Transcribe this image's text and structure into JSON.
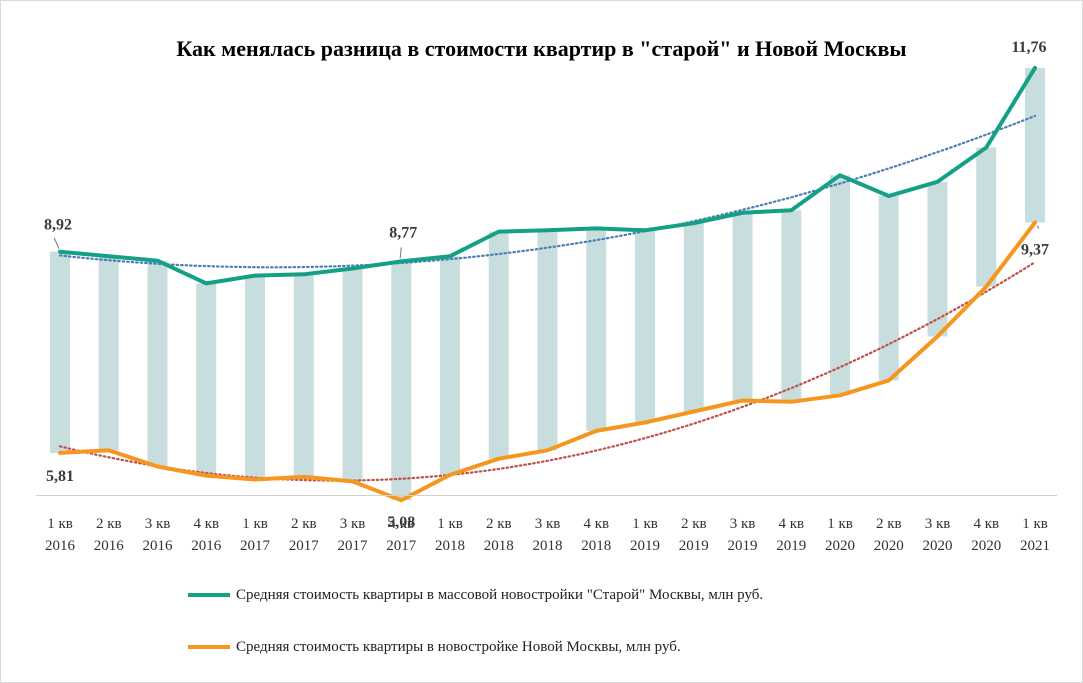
{
  "chart_data": {
    "type": "line",
    "title": "Как менялась разница в стоимости  квартир в \"старой\"  и Новой  Москвы",
    "xlabel": "",
    "ylabel": "",
    "ylim": [
      4.5,
      12.2
    ],
    "grid": false,
    "legend_position": "bottom",
    "categories": [
      [
        "1 кв",
        "2016"
      ],
      [
        "2 кв",
        "2016"
      ],
      [
        "3 кв",
        "2016"
      ],
      [
        "4 кв",
        "2016"
      ],
      [
        "1 кв",
        "2017"
      ],
      [
        "2 кв",
        "2017"
      ],
      [
        "3 кв",
        "2017"
      ],
      [
        "4 кв",
        "2017"
      ],
      [
        "1 кв",
        "2018"
      ],
      [
        "2 кв",
        "2018"
      ],
      [
        "3 кв",
        "2018"
      ],
      [
        "4 кв",
        "2018"
      ],
      [
        "1 кв",
        "2019"
      ],
      [
        "2 кв",
        "2019"
      ],
      [
        "3 кв",
        "2019"
      ],
      [
        "4 кв",
        "2019"
      ],
      [
        "1 кв",
        "2020"
      ],
      [
        "2 кв",
        "2020"
      ],
      [
        "3 кв",
        "2020"
      ],
      [
        "4 кв",
        "2020"
      ],
      [
        "1 кв",
        "2021"
      ]
    ],
    "series": [
      {
        "name": "Средняя стоимость квартиры в массовой новостройки \"Старой\" Москвы, млн руб.",
        "color": "#13a085",
        "values": [
          8.92,
          8.85,
          8.78,
          8.43,
          8.55,
          8.57,
          8.66,
          8.77,
          8.85,
          9.23,
          9.25,
          9.28,
          9.25,
          9.36,
          9.52,
          9.56,
          10.1,
          9.78,
          10.0,
          10.53,
          11.76
        ]
      },
      {
        "name": "Средняя стоимость квартиры в новостройке Новой Москвы, млн руб.",
        "color": "#f7961e",
        "values": [
          5.81,
          5.85,
          5.6,
          5.46,
          5.4,
          5.44,
          5.37,
          5.08,
          5.47,
          5.72,
          5.85,
          6.15,
          6.28,
          6.45,
          6.62,
          6.6,
          6.7,
          6.93,
          7.61,
          8.38,
          9.37
        ]
      }
    ],
    "range_bars_color": "#c8dede",
    "trendlines": [
      {
        "of_series": 0,
        "style": "dotted",
        "color": "#4a7fb5"
      },
      {
        "of_series": 1,
        "style": "dotted",
        "color": "#c0504d"
      }
    ],
    "data_labels": [
      {
        "series": 0,
        "index": 0,
        "text": "8,92"
      },
      {
        "series": 0,
        "index": 7,
        "text": "8,77"
      },
      {
        "series": 0,
        "index": 20,
        "text": "11,76"
      },
      {
        "series": 1,
        "index": 0,
        "text": "5,81"
      },
      {
        "series": 1,
        "index": 7,
        "text": "5,08"
      },
      {
        "series": 1,
        "index": 20,
        "text": "9,37"
      }
    ]
  },
  "legend": {
    "items": [
      {
        "label": "Средняя стоимость квартиры в массовой новостройки \"Старой\" Москвы, млн руб.",
        "color": "#13a085"
      },
      {
        "label": "Средняя стоимость квартиры в новостройке Новой Москвы, млн руб.",
        "color": "#f7961e"
      }
    ]
  }
}
